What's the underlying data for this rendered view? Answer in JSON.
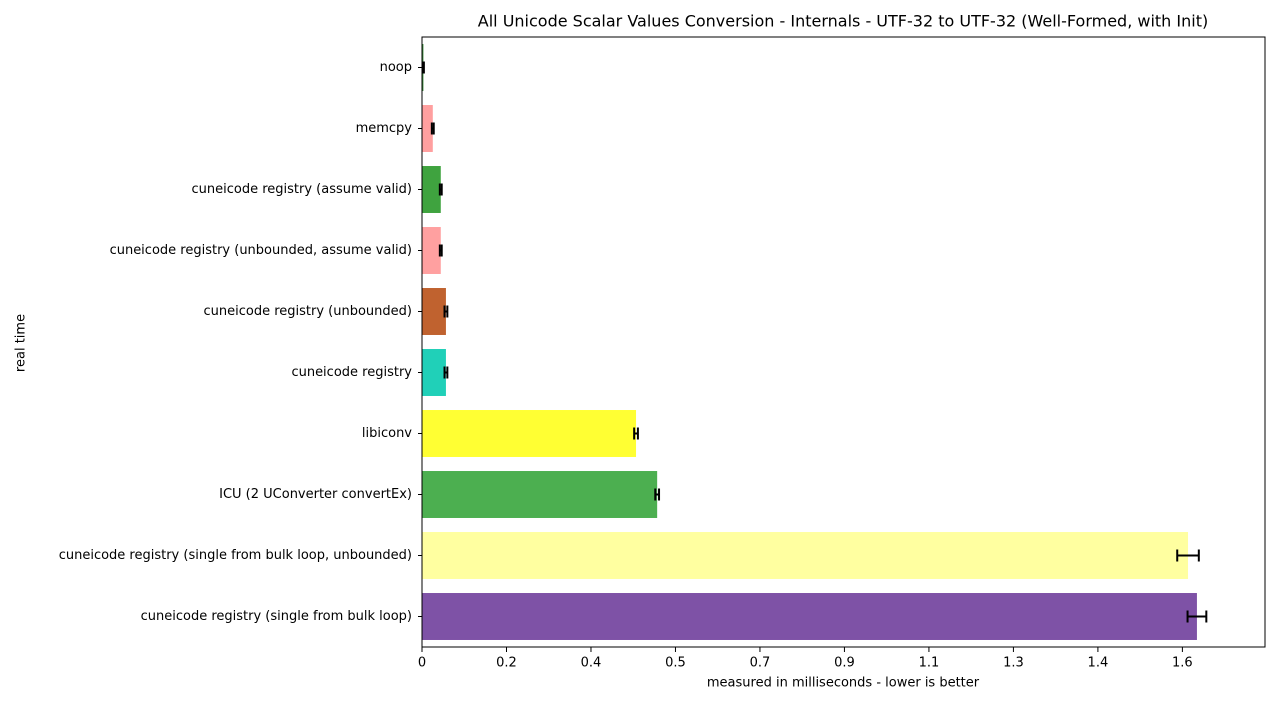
{
  "chart_data": {
    "type": "barh",
    "title": "All Unicode Scalar Values Conversion - Internals - UTF-32 to UTF-32 (Well-Formed, with Init)",
    "xlabel": "measured in milliseconds - lower is better",
    "ylabel": "real time",
    "categories": [
      "noop",
      "memcpy",
      "cuneicode registry (assume valid)",
      "cuneicode registry (unbounded, assume valid)",
      "cuneicode registry (unbounded)",
      "cuneicode registry",
      "libiconv",
      "ICU (2 UConverter convertEx)",
      "cuneicode registry (single from bulk loop, unbounded)",
      "cuneicode registry (single from bulk loop)"
    ],
    "values": [
      0.003,
      0.023,
      0.04,
      0.04,
      0.051,
      0.051,
      0.456,
      0.501,
      1.632,
      1.651
    ],
    "errors": [
      0.001,
      0.002,
      0.002,
      0.002,
      0.003,
      0.003,
      0.004,
      0.004,
      0.023,
      0.02
    ],
    "colors": [
      "#3a8a3a",
      "#ff9f9f",
      "#3fa33f",
      "#ffa0a0",
      "#c0622f",
      "#20d0b8",
      "#ffff33",
      "#4caf50",
      "#ffffa0",
      "#7e52a6"
    ],
    "xlim": [
      0,
      1.796
    ],
    "xticks": [
      0,
      {
        "value": 0.18,
        "label": "0.2"
      },
      {
        "value": 0.36,
        "label": "0.4"
      },
      {
        "value": 0.54,
        "label": "0.5"
      },
      {
        "value": 0.72,
        "label": "0.7"
      },
      0.9,
      {
        "value": 1.08,
        "label": "1.1"
      },
      {
        "value": 1.26,
        "label": "1.3"
      },
      {
        "value": 1.44,
        "label": "1.4"
      },
      {
        "value": 1.62,
        "label": "1.6"
      }
    ]
  }
}
